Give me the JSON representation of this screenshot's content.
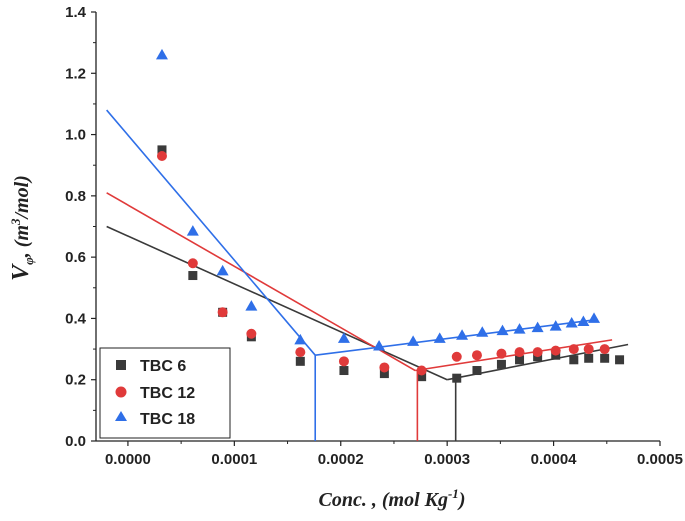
{
  "chart_data": {
    "type": "scatter",
    "title": "",
    "xlabel": "Conc. , (mol Kg",
    "xlabel_sup": "-1",
    "xlabel_end": ")",
    "ylabel_main": "V",
    "ylabel_sub": "φ",
    "ylabel_unit_open": ", (m",
    "ylabel_sup": "3",
    "ylabel_unit_close": "/mol)",
    "xlim": [
      -3e-05,
      0.0005
    ],
    "ylim": [
      0.0,
      1.4
    ],
    "x_ticks": [
      0.0,
      0.0001,
      0.0002,
      0.0003,
      0.0004,
      0.0005
    ],
    "x_tick_labels": [
      "0.0000",
      "0.0001",
      "0.0002",
      "0.0003",
      "0.0004",
      "0.0005"
    ],
    "y_ticks": [
      0.0,
      0.2,
      0.4,
      0.6,
      0.8,
      1.0,
      1.2,
      1.4
    ],
    "y_tick_labels": [
      "0.0",
      "0.2",
      "0.4",
      "0.6",
      "0.8",
      "1.0",
      "1.2",
      "1.4"
    ],
    "legend_position": "bottom-left",
    "series": [
      {
        "name": "TBC 6",
        "color": "#3a3a3a",
        "marker": "square",
        "x": [
          3.2e-05,
          6.1e-05,
          8.9e-05,
          0.000116,
          0.000162,
          0.000203,
          0.000241,
          0.000276,
          0.000309,
          0.000328,
          0.000351,
          0.000368,
          0.000385,
          0.000402,
          0.000419,
          0.000433,
          0.000448,
          0.000462
        ],
        "y": [
          0.95,
          0.54,
          0.42,
          0.34,
          0.26,
          0.23,
          0.22,
          0.21,
          0.205,
          0.23,
          0.25,
          0.265,
          0.275,
          0.28,
          0.265,
          0.27,
          0.27,
          0.265
        ],
        "fit_lines": [
          [
            [
              -2e-05,
              0.7
            ],
            [
              0.0003,
              0.2
            ]
          ],
          [
            [
              0.0003,
              0.2
            ],
            [
              0.00047,
              0.315
            ]
          ]
        ],
        "cmc": 0.000308
      },
      {
        "name": "TBC 12",
        "color": "#e03a3a",
        "marker": "circle",
        "x": [
          3.2e-05,
          6.1e-05,
          8.9e-05,
          0.000116,
          0.000162,
          0.000203,
          0.000241,
          0.000276,
          0.000309,
          0.000328,
          0.000351,
          0.000368,
          0.000385,
          0.000402,
          0.000419,
          0.000433,
          0.000448
        ],
        "y": [
          0.93,
          0.58,
          0.42,
          0.35,
          0.29,
          0.26,
          0.24,
          0.23,
          0.275,
          0.28,
          0.285,
          0.29,
          0.29,
          0.295,
          0.3,
          0.3,
          0.3
        ],
        "fit_lines": [
          [
            [
              -2e-05,
              0.81
            ],
            [
              0.00027,
              0.23
            ]
          ],
          [
            [
              0.00027,
              0.23
            ],
            [
              0.000455,
              0.33
            ]
          ]
        ],
        "cmc": 0.000272
      },
      {
        "name": "TBC 18",
        "color": "#2f6fe8",
        "marker": "triangle",
        "x": [
          3.2e-05,
          6.1e-05,
          8.9e-05,
          0.000116,
          0.000162,
          0.000203,
          0.000236,
          0.000268,
          0.000293,
          0.000314,
          0.000333,
          0.000352,
          0.000368,
          0.000385,
          0.000402,
          0.000417,
          0.000428,
          0.000438
        ],
        "y": [
          1.26,
          0.685,
          0.555,
          0.44,
          0.33,
          0.335,
          0.31,
          0.325,
          0.335,
          0.345,
          0.355,
          0.36,
          0.365,
          0.37,
          0.375,
          0.385,
          0.39,
          0.4
        ],
        "fit_lines": [
          [
            [
              -2e-05,
              1.08
            ],
            [
              0.000176,
              0.28
            ]
          ],
          [
            [
              0.000176,
              0.28
            ],
            [
              0.000438,
              0.395
            ]
          ]
        ],
        "cmc": 0.000176
      }
    ]
  }
}
